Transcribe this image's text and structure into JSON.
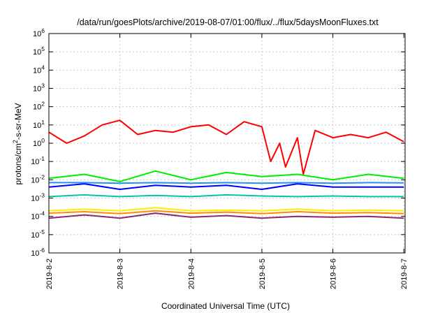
{
  "chart_data": {
    "type": "line",
    "title": "/data/run/goesPlots/archive/2019-08-07/01:00/flux/../flux/5daysMoonFluxes.txt",
    "xlabel": "Coordinated Universal Time (UTC)",
    "ylabel_main": "protons/cm",
    "ylabel_sup": "2",
    "ylabel_rest": "-s-sr-MeV",
    "y_scale": "log",
    "ylim": [
      1e-06,
      1000000.0
    ],
    "xlim": [
      "2019-8-2",
      "2019-8-7 00:25"
    ],
    "grid": true,
    "y_ticks": [
      {
        "value": 1e-06,
        "base": "10",
        "exp": "-6"
      },
      {
        "value": 1e-05,
        "base": "10",
        "exp": "-5"
      },
      {
        "value": 0.0001,
        "base": "10",
        "exp": "-4"
      },
      {
        "value": 0.001,
        "base": "10",
        "exp": "-3"
      },
      {
        "value": 0.01,
        "base": "10",
        "exp": "-2"
      },
      {
        "value": 0.1,
        "base": "10",
        "exp": "-1"
      },
      {
        "value": 1.0,
        "base": "10",
        "exp": "0"
      },
      {
        "value": 10.0,
        "base": "10",
        "exp": "1"
      },
      {
        "value": 100.0,
        "base": "10",
        "exp": "2"
      },
      {
        "value": 1000.0,
        "base": "10",
        "exp": "3"
      },
      {
        "value": 10000.0,
        "base": "10",
        "exp": "4"
      },
      {
        "value": 100000.0,
        "base": "10",
        "exp": "5"
      },
      {
        "value": 1000000.0,
        "base": "10",
        "exp": "6"
      }
    ],
    "x_ticks": [
      "2019-8-2",
      "2019-8-3",
      "2019-8-4",
      "2019-8-5",
      "2019-8-6",
      "2019-8-7"
    ],
    "series": [
      {
        "color": "#ff0000",
        "x": [
          "2019-8-2 00:00",
          "2019-8-2 06:00",
          "2019-8-2 12:00",
          "2019-8-2 18:00",
          "2019-8-3 00:00",
          "2019-8-3 06:00",
          "2019-8-3 12:00",
          "2019-8-3 18:00",
          "2019-8-4 00:00",
          "2019-8-4 06:00",
          "2019-8-4 12:00",
          "2019-8-4 18:00",
          "2019-8-5 00:00",
          "2019-8-5 03:00",
          "2019-8-5 06:00",
          "2019-8-5 08:00",
          "2019-8-5 12:00",
          "2019-8-5 14:00",
          "2019-8-5 18:00",
          "2019-8-6 00:00",
          "2019-8-6 06:00",
          "2019-8-6 12:00",
          "2019-8-6 18:00",
          "2019-8-7 00:00"
        ],
        "y": [
          4,
          1,
          2.5,
          10,
          18,
          3,
          5,
          4,
          8,
          10,
          3,
          15,
          8,
          0.1,
          1,
          0.05,
          2,
          0.02,
          5,
          2,
          3,
          2,
          4,
          1.2
        ]
      },
      {
        "color": "#00ee00",
        "x": [
          "2019-8-2 00:00",
          "2019-8-2 12:00",
          "2019-8-3 00:00",
          "2019-8-3 12:00",
          "2019-8-4 00:00",
          "2019-8-4 12:00",
          "2019-8-5 00:00",
          "2019-8-5 12:00",
          "2019-8-6 00:00",
          "2019-8-6 12:00",
          "2019-8-7 00:00"
        ],
        "y": [
          0.012,
          0.02,
          0.008,
          0.03,
          0.01,
          0.025,
          0.015,
          0.02,
          0.01,
          0.02,
          0.012
        ]
      },
      {
        "color": "#0000ff",
        "x": [
          "2019-8-2 00:00",
          "2019-8-2 12:00",
          "2019-8-3 00:00",
          "2019-8-3 12:00",
          "2019-8-4 00:00",
          "2019-8-4 12:00",
          "2019-8-5 00:00",
          "2019-8-5 12:00",
          "2019-8-6 00:00",
          "2019-8-6 12:00",
          "2019-8-7 00:00"
        ],
        "y": [
          0.004,
          0.006,
          0.003,
          0.005,
          0.004,
          0.005,
          0.003,
          0.006,
          0.004,
          0.004,
          0.004
        ]
      },
      {
        "color": "#1f90ff",
        "x": [
          "2019-8-2 00:00",
          "2019-8-2 12:00",
          "2019-8-3 00:00",
          "2019-8-3 12:00",
          "2019-8-4 00:00",
          "2019-8-4 12:00",
          "2019-8-5 00:00",
          "2019-8-5 12:00",
          "2019-8-6 00:00",
          "2019-8-6 12:00",
          "2019-8-7 00:00"
        ],
        "y": [
          0.007,
          0.007,
          0.0065,
          0.007,
          0.0065,
          0.007,
          0.0065,
          0.007,
          0.0065,
          0.007,
          0.0068
        ]
      },
      {
        "color": "#00c8a0",
        "x": [
          "2019-8-2 00:00",
          "2019-8-2 12:00",
          "2019-8-3 00:00",
          "2019-8-3 12:00",
          "2019-8-4 00:00",
          "2019-8-4 12:00",
          "2019-8-5 00:00",
          "2019-8-5 12:00",
          "2019-8-6 00:00",
          "2019-8-6 12:00",
          "2019-8-7 00:00"
        ],
        "y": [
          0.0012,
          0.0015,
          0.0012,
          0.0014,
          0.0012,
          0.0015,
          0.0013,
          0.0012,
          0.0013,
          0.0012,
          0.0012
        ]
      },
      {
        "color": "#ffee00",
        "x": [
          "2019-8-2 00:00",
          "2019-8-2 12:00",
          "2019-8-3 00:00",
          "2019-8-3 12:00",
          "2019-8-4 00:00",
          "2019-8-4 12:00",
          "2019-8-5 00:00",
          "2019-8-5 12:00",
          "2019-8-6 00:00",
          "2019-8-6 12:00",
          "2019-8-7 00:00"
        ],
        "y": [
          0.0002,
          0.00025,
          0.0002,
          0.0003,
          0.0002,
          0.00022,
          0.0002,
          0.00025,
          0.0002,
          0.00022,
          0.0002
        ]
      },
      {
        "color": "#ff8c00",
        "x": [
          "2019-8-2 00:00",
          "2019-8-2 12:00",
          "2019-8-3 00:00",
          "2019-8-3 12:00",
          "2019-8-4 00:00",
          "2019-8-4 12:00",
          "2019-8-5 00:00",
          "2019-8-5 12:00",
          "2019-8-6 00:00",
          "2019-8-6 12:00",
          "2019-8-7 00:00"
        ],
        "y": [
          0.00015,
          0.00018,
          0.00014,
          0.0002,
          0.00015,
          0.00017,
          0.00014,
          0.00018,
          0.00015,
          0.00016,
          0.00014
        ]
      },
      {
        "color": "#8b2a6e",
        "x": [
          "2019-8-2 00:00",
          "2019-8-2 12:00",
          "2019-8-3 00:00",
          "2019-8-3 12:00",
          "2019-8-4 00:00",
          "2019-8-4 12:00",
          "2019-8-5 00:00",
          "2019-8-5 12:00",
          "2019-8-6 00:00",
          "2019-8-6 12:00",
          "2019-8-7 00:00"
        ],
        "y": [
          8e-05,
          0.00012,
          8e-05,
          0.00015,
          9e-05,
          0.00011,
          8e-05,
          0.0001,
          9e-05,
          0.0001,
          8e-05
        ]
      }
    ]
  }
}
